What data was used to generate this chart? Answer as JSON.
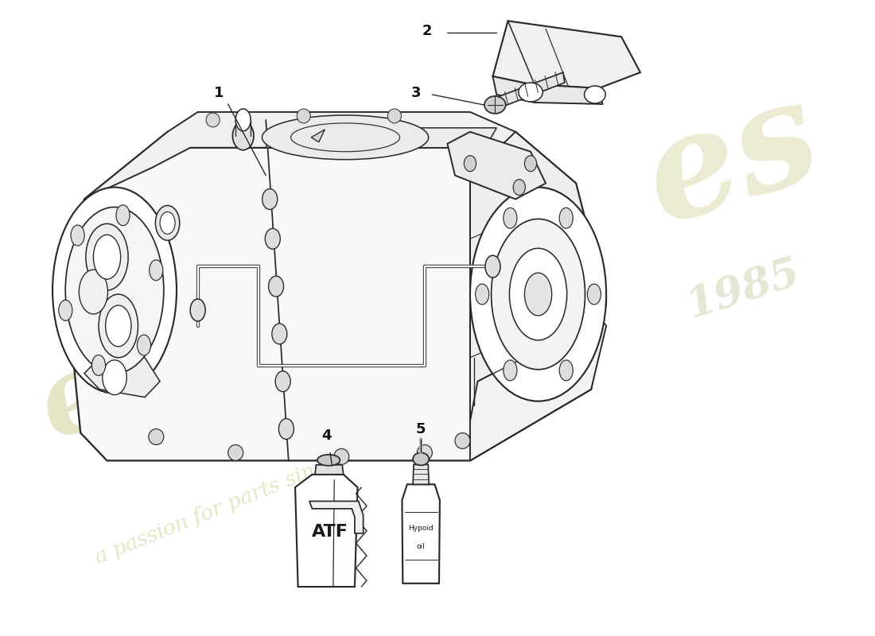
{
  "background_color": "#ffffff",
  "line_color": "#2a2a2a",
  "watermark_color1": "#d8d8a8",
  "watermark_color2": "#c8c8a0",
  "figsize": [
    11.0,
    8.0
  ],
  "dpi": 100,
  "transmission_color": "#f5f5f5",
  "part_labels": [
    "1",
    "2",
    "3",
    "4",
    "5"
  ]
}
